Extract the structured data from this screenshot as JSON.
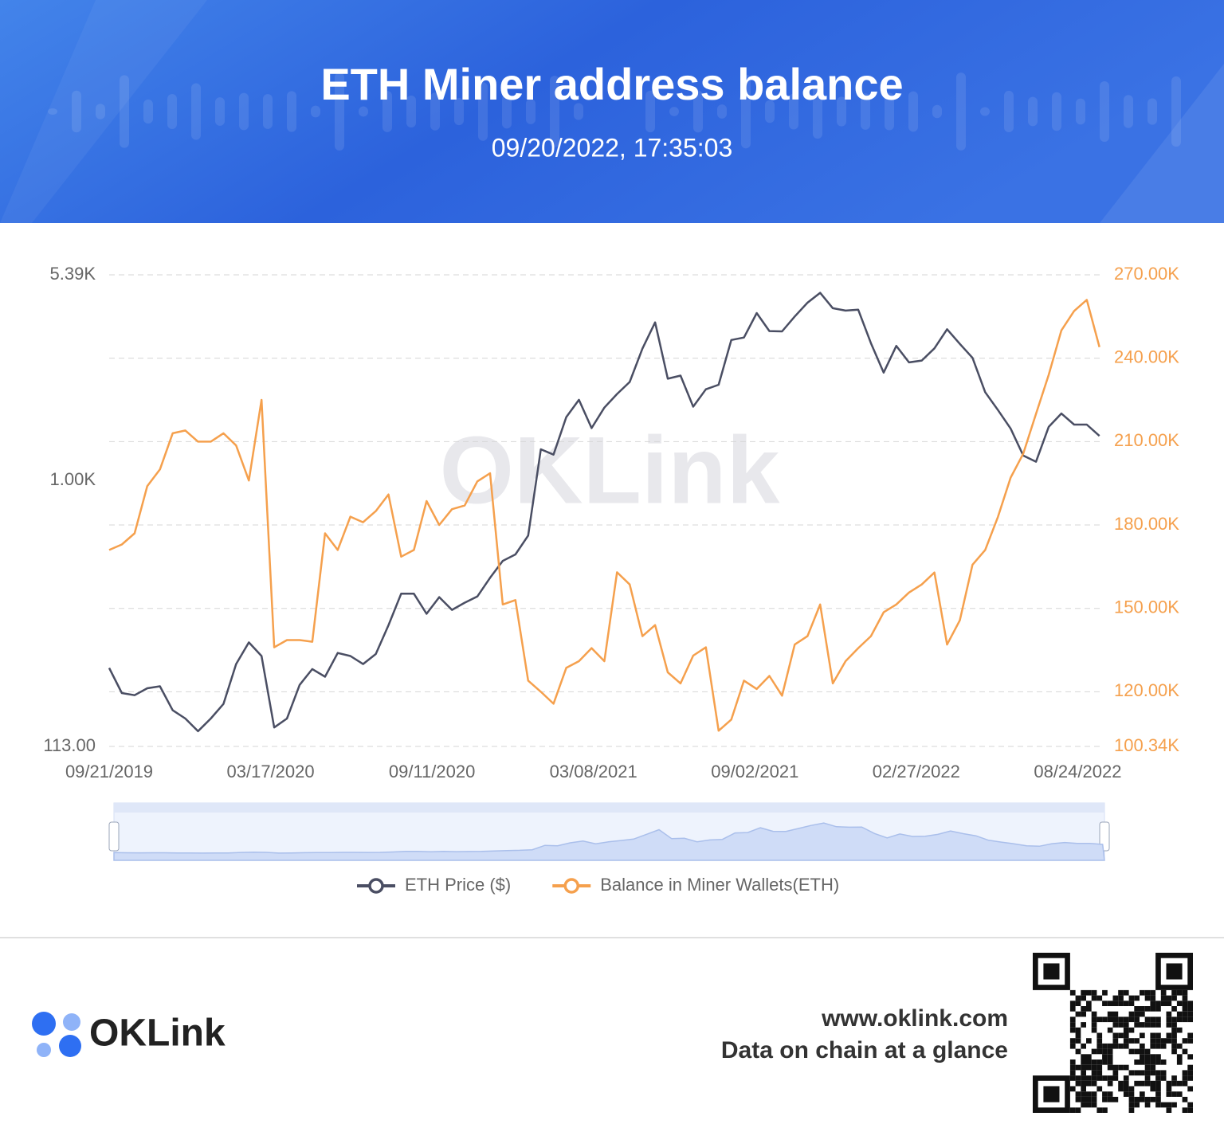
{
  "header": {
    "title": "ETH Miner address balance",
    "timestamp": "09/20/2022, 17:35:03"
  },
  "chart_data": {
    "type": "line",
    "x": [
      "09/21/2019",
      "10/05/2019",
      "10/19/2019",
      "11/02/2019",
      "11/16/2019",
      "11/30/2019",
      "12/14/2019",
      "12/28/2019",
      "01/11/2020",
      "01/25/2020",
      "02/08/2020",
      "02/22/2020",
      "03/07/2020",
      "03/21/2020",
      "04/04/2020",
      "04/18/2020",
      "05/02/2020",
      "05/16/2020",
      "05/30/2020",
      "06/13/2020",
      "06/27/2020",
      "07/11/2020",
      "07/25/2020",
      "08/08/2020",
      "08/22/2020",
      "09/05/2020",
      "09/19/2020",
      "10/03/2020",
      "10/17/2020",
      "10/31/2020",
      "11/14/2020",
      "11/28/2020",
      "12/12/2020",
      "12/26/2020",
      "01/09/2021",
      "01/23/2021",
      "02/06/2021",
      "02/20/2021",
      "03/06/2021",
      "03/20/2021",
      "04/03/2021",
      "04/17/2021",
      "05/01/2021",
      "05/15/2021",
      "05/29/2021",
      "06/12/2021",
      "06/26/2021",
      "07/10/2021",
      "07/24/2021",
      "08/07/2021",
      "08/21/2021",
      "09/04/2021",
      "09/18/2021",
      "10/02/2021",
      "10/16/2021",
      "10/30/2021",
      "11/13/2021",
      "11/27/2021",
      "12/11/2021",
      "12/25/2021",
      "01/08/2022",
      "01/22/2022",
      "02/05/2022",
      "02/19/2022",
      "03/05/2022",
      "03/19/2022",
      "04/02/2022",
      "04/16/2022",
      "04/30/2022",
      "05/14/2022",
      "05/28/2022",
      "06/11/2022",
      "06/25/2022",
      "07/09/2022",
      "07/23/2022",
      "08/06/2022",
      "08/20/2022",
      "09/03/2022",
      "09/17/2022"
    ],
    "series": [
      {
        "name": "ETH Price ($)",
        "color": "#4a4e63",
        "axis": "y",
        "values": [
          215,
          175,
          172,
          182,
          185,
          152,
          142,
          128,
          142,
          160,
          222,
          265,
          237,
          132,
          142,
          187,
          213,
          200,
          243,
          237,
          222,
          241,
          305,
          395,
          395,
          335,
          384,
          346,
          367,
          386,
          450,
          517,
          545,
          636,
          1290,
          1235,
          1680,
          1935,
          1535,
          1815,
          2030,
          2240,
          2945,
          3650,
          2300,
          2360,
          1830,
          2110,
          2190,
          3160,
          3225,
          3940,
          3400,
          3390,
          3830,
          4290,
          4650,
          4100,
          4020,
          4050,
          3080,
          2420,
          3010,
          2630,
          2670,
          2950,
          3450,
          3060,
          2730,
          2060,
          1780,
          1530,
          1225,
          1165,
          1550,
          1730,
          1580,
          1580,
          1440
        ]
      },
      {
        "name": "Balance in Miner Wallets(ETH)",
        "color": "#f5a04d",
        "axis": "y2",
        "values": [
          171000,
          173000,
          177000,
          194000,
          200000,
          213000,
          214000,
          210000,
          210000,
          213000,
          208600,
          196000,
          225000,
          136000,
          138600,
          138600,
          138000,
          177000,
          171000,
          183000,
          181000,
          185000,
          191000,
          168600,
          171000,
          188600,
          180000,
          185700,
          187000,
          195700,
          198600,
          151400,
          153000,
          124000,
          120000,
          115700,
          128600,
          131000,
          135700,
          131000,
          163000,
          158600,
          140000,
          144000,
          127000,
          123000,
          133000,
          136000,
          106000,
          110000,
          124000,
          121000,
          125700,
          118600,
          137000,
          140000,
          151400,
          123000,
          131000,
          135700,
          140000,
          148600,
          151400,
          155700,
          158600,
          162900,
          137000,
          145700,
          165700,
          171000,
          182900,
          197000,
          205700,
          220000,
          234000,
          250000,
          257000,
          261000,
          244000
        ]
      }
    ],
    "xlim": [
      "09/21/2019",
      "09/19/2022"
    ],
    "xticks": [
      "09/21/2019",
      "03/17/2020",
      "09/11/2020",
      "03/08/2021",
      "09/02/2021",
      "02/27/2022",
      "08/24/2022"
    ],
    "ylim": [
      113,
      5390
    ],
    "yscale": "log",
    "yticks": [
      {
        "value": 5390,
        "label": "5.39K"
      },
      {
        "value": 1000,
        "label": "1.00K"
      },
      {
        "value": 113,
        "label": "113.00"
      }
    ],
    "y2lim": [
      100340,
      270000
    ],
    "y2ticks": [
      {
        "value": 270000,
        "label": "270.00K"
      },
      {
        "value": 240000,
        "label": "240.00K"
      },
      {
        "value": 210000,
        "label": "210.00K"
      },
      {
        "value": 180000,
        "label": "180.00K"
      },
      {
        "value": 150000,
        "label": "150.00K"
      },
      {
        "value": 120000,
        "label": "120.00K"
      },
      {
        "value": 100340,
        "label": "100.34K"
      }
    ],
    "grid": "y2",
    "legend": "bottom",
    "watermark": "OKLink"
  },
  "footer": {
    "brand": "OKLink",
    "url": "www.oklink.com",
    "tagline": "Data on chain at a glance"
  }
}
